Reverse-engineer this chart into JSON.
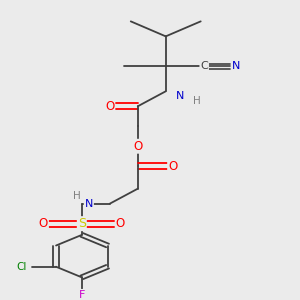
{
  "background_color": "#ebebeb",
  "figsize": [
    3.0,
    3.0
  ],
  "dpi": 100,
  "atom_colors": {
    "O": "#ff0000",
    "N": "#0000cc",
    "S": "#cccc00",
    "Cl": "#008000",
    "F": "#cc00cc",
    "C": "#404040",
    "H": "#808080"
  }
}
